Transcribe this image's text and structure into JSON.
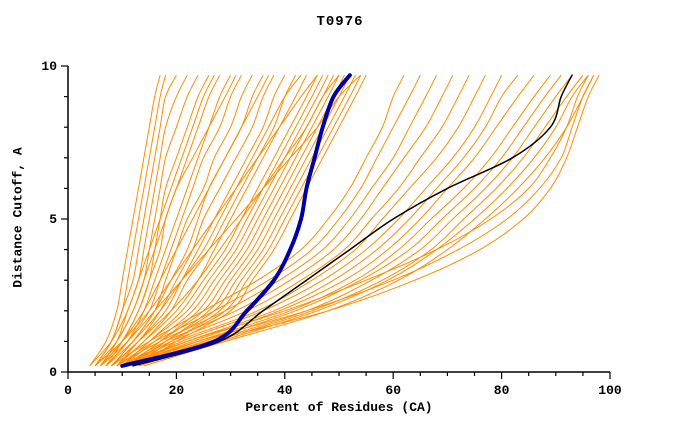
{
  "chart_data": {
    "type": "line",
    "title": "T0976",
    "xlabel": "Percent of Residues (CA)",
    "ylabel": "Distance Cutoff, A",
    "xlim": [
      0,
      100
    ],
    "ylim": [
      0,
      10
    ],
    "x_major_ticks": [
      0,
      20,
      40,
      60,
      80,
      100
    ],
    "x_minor_step": 5,
    "y_major_ticks": [
      0,
      5,
      10
    ],
    "y_minor_step": 1,
    "grid": false,
    "legend": "none",
    "colors": {
      "model_curves": "#ff8c00",
      "highlighted_curve": "#0000a8",
      "reference_curve": "#000000",
      "axis": "#000000",
      "background": "#ffffff"
    },
    "y_knots": [
      0.2,
      1,
      2,
      3,
      4,
      5,
      6,
      7,
      8,
      9,
      9.7
    ],
    "series": [
      {
        "name": "highlighted-model",
        "color": "#0000a8",
        "width": 4,
        "xs": [
          10,
          27,
          33,
          38,
          41,
          43,
          44,
          45.5,
          47,
          49,
          52
        ]
      },
      {
        "name": "reference-model",
        "color": "#000000",
        "width": 1.5,
        "xs": [
          12,
          28,
          36,
          44,
          52,
          60,
          70,
          82,
          89,
          91,
          93
        ]
      }
    ],
    "model_curves_xs": [
      [
        4,
        7,
        9,
        10,
        11,
        12,
        13,
        14,
        15,
        16,
        17
      ],
      [
        5,
        8,
        10,
        11,
        12,
        13,
        14,
        15,
        16,
        17,
        18
      ],
      [
        5,
        8,
        10,
        12,
        13,
        14,
        15,
        16,
        17,
        18,
        20
      ],
      [
        6,
        9,
        11,
        13,
        14,
        15,
        16,
        17,
        18,
        20,
        22
      ],
      [
        6,
        9,
        12,
        14,
        15,
        16,
        17,
        18,
        20,
        22,
        24
      ],
      [
        6,
        10,
        13,
        15,
        16,
        17,
        18,
        20,
        22,
        24,
        26
      ],
      [
        7,
        10,
        13,
        15,
        17,
        18,
        20,
        22,
        24,
        26,
        28
      ],
      [
        7,
        11,
        14,
        16,
        18,
        20,
        22,
        24,
        26,
        28,
        30
      ],
      [
        7,
        11,
        15,
        17,
        19,
        21,
        23,
        25,
        28,
        30,
        32
      ],
      [
        8,
        12,
        16,
        18,
        20,
        22,
        25,
        27,
        30,
        32,
        34
      ],
      [
        8,
        12,
        16,
        19,
        22,
        24,
        26,
        29,
        32,
        34,
        36
      ],
      [
        8,
        13,
        17,
        20,
        23,
        25,
        28,
        31,
        34,
        36,
        38
      ],
      [
        9,
        13,
        18,
        21,
        24,
        27,
        30,
        33,
        36,
        38,
        40
      ],
      [
        9,
        14,
        19,
        22,
        26,
        29,
        32,
        35,
        38,
        40,
        42
      ],
      [
        9,
        14,
        20,
        24,
        27,
        30,
        33,
        36,
        39,
        42,
        44
      ],
      [
        10,
        15,
        21,
        25,
        29,
        32,
        35,
        38,
        41,
        44,
        46
      ],
      [
        10,
        15,
        22,
        26,
        30,
        33,
        36,
        39,
        42,
        45,
        47
      ],
      [
        10,
        16,
        23,
        27,
        31,
        34,
        37,
        40,
        43,
        46,
        48
      ],
      [
        11,
        17,
        24,
        28,
        32,
        35,
        38,
        41,
        44,
        47,
        49
      ],
      [
        11,
        17,
        25,
        29,
        33,
        36,
        39,
        42,
        45,
        48,
        50
      ],
      [
        11,
        18,
        26,
        30,
        34,
        37,
        40,
        43,
        46,
        49,
        51
      ],
      [
        12,
        18,
        27,
        31,
        35,
        38,
        41,
        44,
        47,
        50,
        52
      ],
      [
        12,
        19,
        28,
        32,
        36,
        39,
        42,
        45,
        48,
        51,
        53
      ],
      [
        12,
        19,
        29,
        33,
        37,
        40,
        43,
        46,
        49,
        52,
        54
      ],
      [
        13,
        20,
        30,
        34,
        38,
        41,
        44,
        47,
        50,
        53,
        55
      ],
      [
        8,
        15,
        25,
        35,
        43,
        48,
        52,
        55,
        58,
        60,
        62
      ],
      [
        9,
        16,
        27,
        37,
        45,
        50,
        54,
        57,
        60,
        63,
        65
      ],
      [
        9,
        17,
        29,
        39,
        47,
        52,
        56,
        60,
        63,
        66,
        68
      ],
      [
        10,
        18,
        31,
        41,
        49,
        54,
        58,
        62,
        66,
        69,
        71
      ],
      [
        10,
        19,
        33,
        43,
        51,
        56,
        61,
        65,
        69,
        72,
        74
      ],
      [
        10,
        20,
        35,
        45,
        53,
        58,
        63,
        68,
        72,
        75,
        77
      ],
      [
        11,
        21,
        36,
        47,
        55,
        61,
        66,
        71,
        75,
        78,
        80
      ],
      [
        11,
        22,
        38,
        49,
        57,
        63,
        68,
        73,
        77,
        80,
        83
      ],
      [
        11,
        23,
        39,
        51,
        59,
        65,
        70,
        75,
        79,
        83,
        86
      ],
      [
        12,
        24,
        41,
        53,
        61,
        67,
        73,
        78,
        82,
        86,
        89
      ],
      [
        12,
        25,
        42,
        54,
        63,
        69,
        75,
        80,
        84,
        88,
        91
      ],
      [
        12,
        26,
        44,
        56,
        65,
        71,
        77,
        82,
        86,
        90,
        93
      ],
      [
        13,
        27,
        45,
        58,
        67,
        73,
        79,
        84,
        88,
        92,
        95
      ],
      [
        13,
        28,
        46,
        59,
        68,
        75,
        81,
        86,
        90,
        93,
        96
      ],
      [
        14,
        29,
        48,
        61,
        70,
        77,
        83,
        88,
        92,
        95,
        97
      ],
      [
        10,
        22,
        40,
        55,
        68,
        78,
        85,
        89,
        92,
        94,
        96
      ],
      [
        11,
        24,
        44,
        60,
        72,
        81,
        87,
        91,
        93,
        95,
        97
      ],
      [
        12,
        26,
        48,
        64,
        76,
        84,
        89,
        92,
        94,
        96,
        98
      ],
      [
        5,
        9,
        12,
        14,
        16,
        18,
        20,
        23,
        26,
        29,
        31
      ],
      [
        6,
        10,
        14,
        17,
        20,
        23,
        26,
        29,
        32,
        35,
        37
      ],
      [
        7,
        12,
        17,
        21,
        25,
        28,
        31,
        34,
        37,
        40,
        43
      ],
      [
        8,
        13,
        19,
        24,
        28,
        32,
        36,
        40,
        44,
        47,
        50
      ],
      [
        4,
        8,
        11,
        13,
        15,
        17,
        19,
        21,
        23,
        25,
        27
      ],
      [
        5,
        10,
        15,
        19,
        23,
        27,
        31,
        35,
        39,
        43,
        46
      ],
      [
        6,
        11,
        16,
        21,
        26,
        31,
        36,
        41,
        46,
        50,
        54
      ]
    ]
  }
}
